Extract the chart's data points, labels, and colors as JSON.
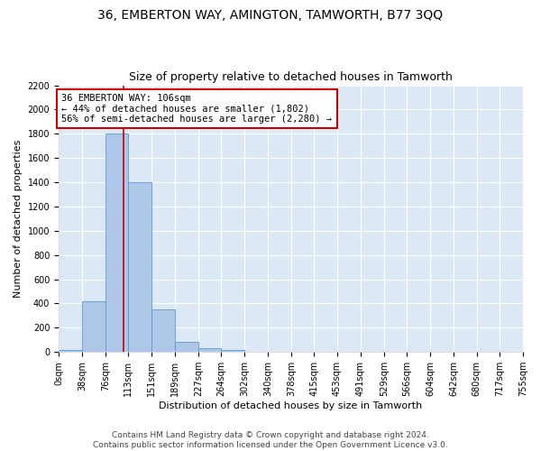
{
  "title": "36, EMBERTON WAY, AMINGTON, TAMWORTH, B77 3QQ",
  "subtitle": "Size of property relative to detached houses in Tamworth",
  "xlabel": "Distribution of detached houses by size in Tamworth",
  "ylabel": "Number of detached properties",
  "bin_edges": [
    0,
    38,
    76,
    113,
    151,
    189,
    227,
    264,
    302,
    340,
    378,
    415,
    453,
    491,
    529,
    566,
    604,
    642,
    680,
    717,
    755
  ],
  "bin_counts": [
    15,
    420,
    1800,
    1400,
    350,
    80,
    30,
    20,
    5,
    2,
    1,
    0,
    0,
    0,
    0,
    0,
    0,
    0,
    0,
    0
  ],
  "bar_color": "#aec6e8",
  "bar_edge_color": "#5b9bd5",
  "background_color": "#dce8f5",
  "fig_background_color": "#ffffff",
  "grid_color": "#ffffff",
  "property_size": 106,
  "vertical_line_color": "#cc0000",
  "annotation_text": "36 EMBERTON WAY: 106sqm\n← 44% of detached houses are smaller (1,802)\n56% of semi-detached houses are larger (2,280) →",
  "annotation_box_facecolor": "#ffffff",
  "annotation_box_edgecolor": "#cc0000",
  "ylim": [
    0,
    2200
  ],
  "yticks": [
    0,
    200,
    400,
    600,
    800,
    1000,
    1200,
    1400,
    1600,
    1800,
    2000,
    2200
  ],
  "tick_labels": [
    "0sqm",
    "38sqm",
    "76sqm",
    "113sqm",
    "151sqm",
    "189sqm",
    "227sqm",
    "264sqm",
    "302sqm",
    "340sqm",
    "378sqm",
    "415sqm",
    "453sqm",
    "491sqm",
    "529sqm",
    "566sqm",
    "604sqm",
    "642sqm",
    "680sqm",
    "717sqm",
    "755sqm"
  ],
  "footer_line1": "Contains HM Land Registry data © Crown copyright and database right 2024.",
  "footer_line2": "Contains public sector information licensed under the Open Government Licence v3.0.",
  "title_fontsize": 10,
  "subtitle_fontsize": 9,
  "axis_label_fontsize": 8,
  "tick_fontsize": 7,
  "annotation_fontsize": 7.5,
  "footer_fontsize": 6.5
}
